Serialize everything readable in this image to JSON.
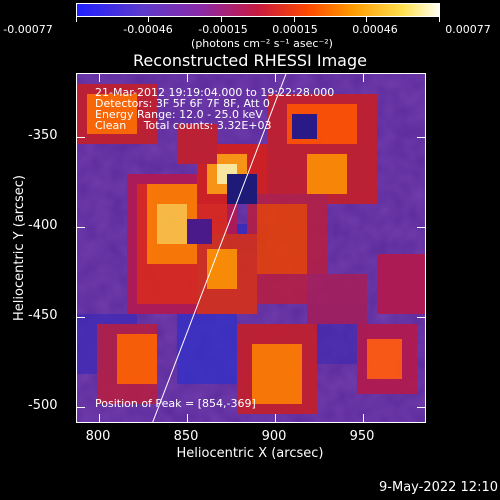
{
  "colorbar": {
    "labels": [
      "-0.00077",
      "-0.00046",
      "-0.00015",
      "0.00015",
      "0.00046",
      "0.00077"
    ],
    "units": "(photons cm⁻² s⁻¹ asec⁻²)"
  },
  "title": "Reconstructed RHESSI Image",
  "annotations": {
    "line1": "21-Mar-2012 19:19:04.000 to 19:22:28.000",
    "line2": "Detectors: 3F 5F 6F 7F 8F, Att 0",
    "line3": "Energy Range: 12.0 - 25.0 keV",
    "line4": "Clean     Total counts: 3.32E+03",
    "peak": "Position of Peak = [854,-369]"
  },
  "axes": {
    "xlabel": "Heliocentric X (arcsec)",
    "ylabel": "Heliocentric Y (arcsec)",
    "xticks": [
      "800",
      "850",
      "900",
      "950"
    ],
    "yticks": [
      "-350",
      "-400",
      "-450",
      "-500"
    ]
  },
  "footer_date": "9-May-2022 12:10",
  "colors": {
    "colormap": [
      "#1a1aff",
      "#6b2bd0",
      "#b01a70",
      "#e02010",
      "#ff7000",
      "#ffd000",
      "#ffffd8"
    ]
  }
}
